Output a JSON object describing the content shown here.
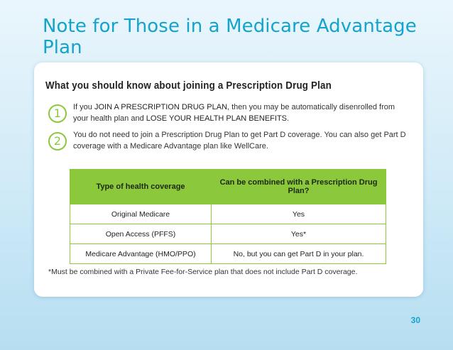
{
  "slide": {
    "title": "Note for Those in a Medicare Advantage Plan",
    "page_number": "30"
  },
  "card": {
    "heading": "What you should know about joining a Prescription Drug Plan",
    "items": [
      {
        "number": "1",
        "parts": [
          {
            "text": "If you ",
            "emphasis": false
          },
          {
            "text": "join a prescription drug plan",
            "emphasis": true
          },
          {
            "text": ", then you may be automatically disenrolled from your health plan and ",
            "emphasis": false
          },
          {
            "text": "lose your health plan benefits",
            "emphasis": true
          },
          {
            "text": ".",
            "emphasis": false
          }
        ]
      },
      {
        "number": "2",
        "parts": [
          {
            "text": "You do not need to join a Prescription Drug Plan to get Part D coverage. You can also get Part D coverage with a Medicare Advantage plan like WellCare.",
            "emphasis": false
          }
        ]
      }
    ],
    "table": {
      "headers": [
        "Type of health coverage",
        "Can be combined with a Prescription Drug Plan?"
      ],
      "rows": [
        [
          "Original Medicare",
          "Yes"
        ],
        [
          "Open Access (PFFS)",
          "Yes*"
        ],
        [
          "Medicare Advantage (HMO/PPO)",
          "No, but you can get Part D in your plan."
        ]
      ]
    },
    "footnote": "*Must be combined with a Private Fee-for-Service plan that does not include Part D coverage."
  },
  "colors": {
    "title_blue": "#14a3cc",
    "accent_green": "#8cc83c",
    "background_light": "#eaf6fc",
    "background_dark": "#b6def1"
  }
}
